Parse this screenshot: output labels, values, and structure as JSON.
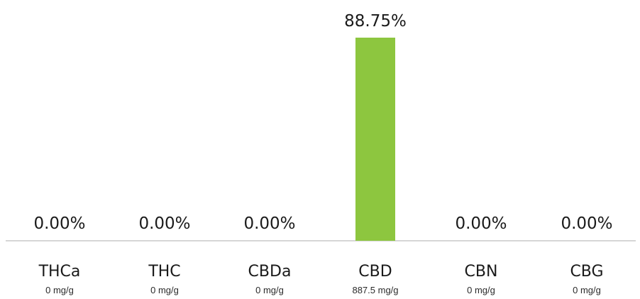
{
  "chart_data": {
    "type": "bar",
    "categories": [
      "THCa",
      "THC",
      "CBDa",
      "CBD",
      "CBN",
      "CBG"
    ],
    "values": [
      0.0,
      0.0,
      0.0,
      88.75,
      0.0,
      0.0
    ],
    "value_labels": [
      "0.00%",
      "0.00%",
      "0.00%",
      "88.75%",
      "0.00%",
      "0.00%"
    ],
    "sublabels": [
      "0 mg/g",
      "0 mg/g",
      "0 mg/g",
      "887.5 mg/g",
      "0 mg/g",
      "0 mg/g"
    ],
    "ylim": [
      0,
      88.75
    ],
    "grid": false,
    "bar_color": "#8dc63f",
    "baseline_color": "#c8c8c8"
  }
}
